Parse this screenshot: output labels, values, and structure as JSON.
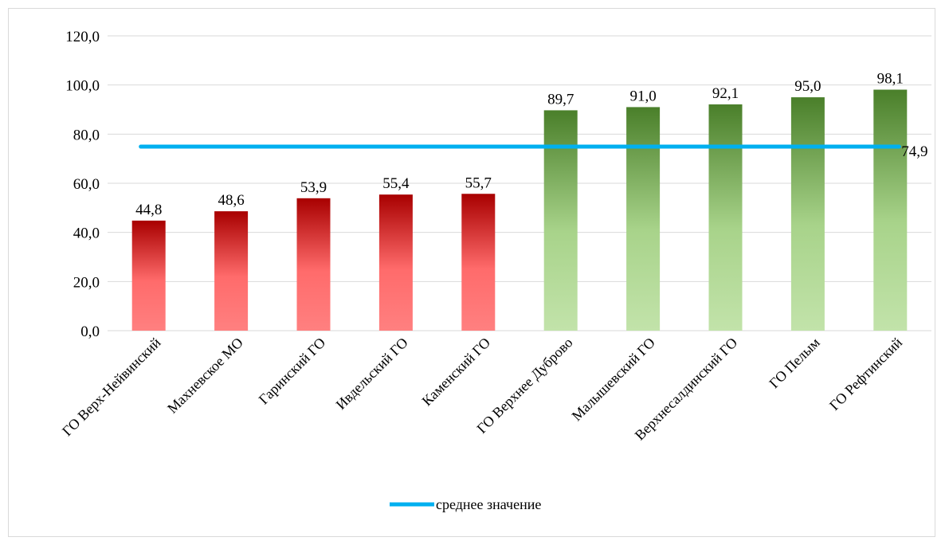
{
  "chart_data": {
    "type": "bar",
    "title": "",
    "xlabel": "",
    "ylabel": "",
    "ylim": [
      0,
      120
    ],
    "y_ticks": [
      "0,0",
      "20,0",
      "40,0",
      "60,0",
      "80,0",
      "100,0",
      "120,0"
    ],
    "y_tick_values": [
      0,
      20,
      40,
      60,
      80,
      100,
      120
    ],
    "grid": true,
    "categories": [
      "ГО Верх-Нейвинский",
      "Махневское МО",
      "Гаринский ГО",
      "Ивдельский ГО",
      "Каменский ГО",
      "ГО Верхнее Дуброво",
      "Малышевский ГО",
      "Верхнесалдинский ГО",
      "ГО Пелым",
      "ГО Рефтинский"
    ],
    "values": [
      44.8,
      48.6,
      53.9,
      55.4,
      55.7,
      89.7,
      91.0,
      92.1,
      95.0,
      98.1
    ],
    "value_labels": [
      "44,8",
      "48,6",
      "53,9",
      "55,4",
      "55,7",
      "89,7",
      "91,0",
      "92,1",
      "95,0",
      "98,1"
    ],
    "bar_groups": [
      "low",
      "low",
      "low",
      "low",
      "low",
      "high",
      "high",
      "high",
      "high",
      "high"
    ],
    "colors": {
      "low_dark": "#a80000",
      "low_light": "#ff6b6b",
      "high_dark": "#4a7f2a",
      "high_light": "#b8dc9a",
      "average_line": "#00b0f0",
      "grid": "#d9d9d9"
    },
    "average": {
      "name": "среднее значение",
      "value": 74.9,
      "value_label": "74,9"
    },
    "legend_position": "bottom"
  }
}
